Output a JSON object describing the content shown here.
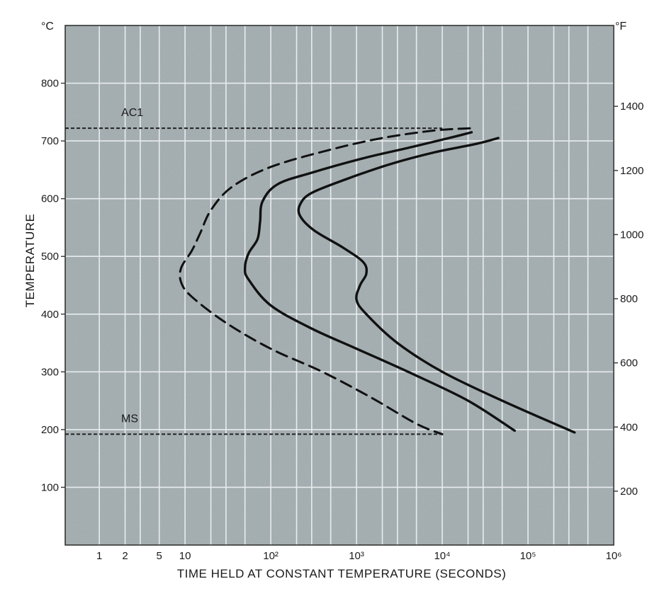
{
  "chart_data": {
    "type": "line",
    "title": "",
    "xlabel": "TIME HELD AT CONSTANT TEMPERATURE (SECONDS)",
    "ylabel": "TEMPERATURE",
    "left_unit": "°C",
    "right_unit": "°F",
    "x_scale": "log",
    "xlim": [
      0.4,
      1000000
    ],
    "ylim": [
      0,
      900
    ],
    "grid": true,
    "plot_background": "#a9b3b6",
    "x_ticks": [
      {
        "value": 1,
        "label": "1"
      },
      {
        "value": 2,
        "label": "2"
      },
      {
        "value": 5,
        "label": "5"
      },
      {
        "value": 10,
        "label": "10"
      },
      {
        "value": 100,
        "label": "10²"
      },
      {
        "value": 1000,
        "label": "10³"
      },
      {
        "value": 10000,
        "label": "10⁴"
      },
      {
        "value": 100000,
        "label": "10⁵"
      },
      {
        "value": 1000000,
        "label": "10⁶"
      }
    ],
    "y_ticks_left": [
      {
        "value": 100,
        "label": "100"
      },
      {
        "value": 200,
        "label": "200"
      },
      {
        "value": 300,
        "label": "300"
      },
      {
        "value": 400,
        "label": "400"
      },
      {
        "value": 500,
        "label": "500"
      },
      {
        "value": 600,
        "label": "600"
      },
      {
        "value": 700,
        "label": "700"
      },
      {
        "value": 800,
        "label": "800"
      }
    ],
    "y_ticks_right": [
      {
        "value": 200,
        "label": "200"
      },
      {
        "value": 400,
        "label": "400"
      },
      {
        "value": 600,
        "label": "600"
      },
      {
        "value": 800,
        "label": "800"
      },
      {
        "value": 1000,
        "label": "1000"
      },
      {
        "value": 1200,
        "label": "1200"
      },
      {
        "value": 1400,
        "label": "1400"
      }
    ],
    "annotations": [
      {
        "label": "AC1",
        "x": 1.8,
        "y": 743
      },
      {
        "label": "MS",
        "x": 1.8,
        "y": 213
      }
    ],
    "reference_lines": [
      {
        "label": "AC1",
        "y": 722,
        "x_from": 0.4,
        "x_to": 10000
      },
      {
        "label": "MS",
        "y": 192,
        "x_from": 0.4,
        "x_to": 10000
      }
    ],
    "series": [
      {
        "style": "dashed",
        "x": [
          21000,
          8000,
          2000,
          500,
          100,
          35,
          20,
          15,
          12,
          9,
          9,
          12,
          30,
          100,
          400,
          1500,
          5000,
          10000
        ],
        "y": [
          722,
          718,
          705,
          685,
          655,
          620,
          580,
          540,
          510,
          480,
          455,
          430,
          385,
          340,
          300,
          255,
          210,
          192
        ]
      },
      {
        "style": "solid",
        "x": [
          22000,
          12000,
          4000,
          1200,
          300,
          120,
          80,
          75,
          70,
          55,
          50,
          55,
          100,
          300,
          1000,
          4000,
          20000,
          70000
        ],
        "y": [
          715,
          705,
          688,
          670,
          645,
          625,
          595,
          560,
          530,
          505,
          480,
          460,
          415,
          375,
          340,
          300,
          250,
          198
        ]
      },
      {
        "style": "solid",
        "x": [
          45000,
          25000,
          8000,
          2500,
          800,
          300,
          220,
          220,
          320,
          700,
          1200,
          1300,
          1100,
          1000,
          1300,
          3000,
          10000,
          50000,
          350000
        ],
        "y": [
          705,
          695,
          680,
          660,
          635,
          610,
          590,
          570,
          545,
          515,
          490,
          470,
          450,
          425,
          400,
          350,
          300,
          250,
          195
        ]
      }
    ]
  }
}
